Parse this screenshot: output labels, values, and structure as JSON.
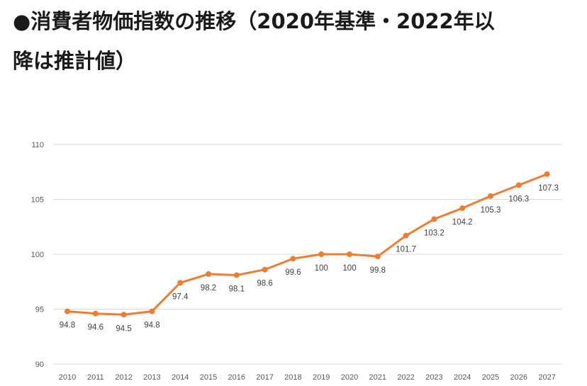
{
  "title": {
    "line1": "●消費者物価指数の推移（2020年基準・2022年以",
    "line2": "降は推計値）"
  },
  "colors": {
    "series": "#ed7d31",
    "grid": "#d9d9d9",
    "text": "#1a1a1a"
  },
  "chart_data": {
    "type": "line",
    "title": "●消費者物価指数の推移（2020年基準・2022年以降は推計値）",
    "xlabel": "",
    "ylabel": "",
    "ylim": [
      90,
      110
    ],
    "yticks": [
      90,
      95,
      100,
      105,
      110
    ],
    "grid": true,
    "legend": "none",
    "categories": [
      "2010",
      "2011",
      "2012",
      "2013",
      "2014",
      "2015",
      "2016",
      "2017",
      "2018",
      "2019",
      "2020",
      "2021",
      "2022",
      "2023",
      "2024",
      "2025",
      "2026",
      "2027"
    ],
    "series": [
      {
        "values": [
          94.8,
          94.6,
          94.5,
          94.8,
          97.4,
          98.2,
          98.1,
          98.6,
          99.6,
          100,
          100,
          99.8,
          101.7,
          103.2,
          104.2,
          105.3,
          106.3,
          107.3
        ],
        "labels": [
          "94.8",
          "94.6",
          "94.5",
          "94.8",
          "97.4",
          "98.2",
          "98.1",
          "98.6",
          "99.6",
          "100",
          "100",
          "99.8",
          "101.7",
          "103.2",
          "104.2",
          "105.3",
          "106.3",
          "107.3"
        ]
      }
    ]
  }
}
